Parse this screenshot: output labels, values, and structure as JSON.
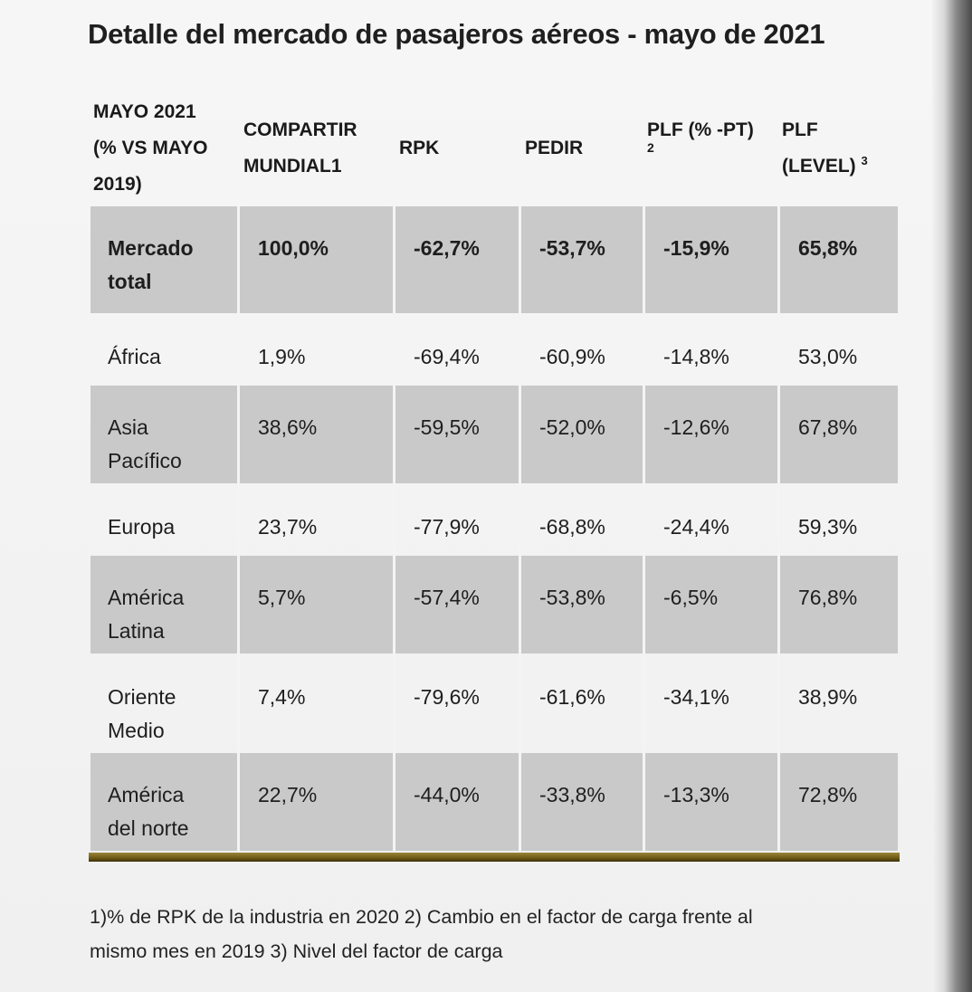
{
  "title": "Detalle del mercado de pasajeros aéreos - mayo de 2021",
  "header": {
    "col1": [
      "MAYO 2021",
      "(% VS MAYO",
      "2019)"
    ],
    "col2": [
      "COMPARTIR",
      "MUNDIAL1"
    ],
    "col3": "RPK",
    "col4": "PEDIR",
    "col5_line1": "PLF (% -PT)",
    "col5_sub": "2",
    "col6_line1": "PLF",
    "col6_line2": "(LEVEL)",
    "col6_sup": "3"
  },
  "rows": [
    {
      "region": [
        "Mercado",
        "total"
      ],
      "share": "100,0%",
      "rpk": "-62,7%",
      "ask": "-53,7%",
      "plf_pt": "-15,9%",
      "plf_level": "65,8%"
    },
    {
      "region": [
        "África"
      ],
      "share": "1,9%",
      "rpk": "-69,4%",
      "ask": "-60,9%",
      "plf_pt": "-14,8%",
      "plf_level": "53,0%"
    },
    {
      "region": [
        "Asia",
        "Pacífico"
      ],
      "share": "38,6%",
      "rpk": "-59,5%",
      "ask": "-52,0%",
      "plf_pt": "-12,6%",
      "plf_level": "67,8%"
    },
    {
      "region": [
        "Europa"
      ],
      "share": "23,7%",
      "rpk": "-77,9%",
      "ask": "-68,8%",
      "plf_pt": "-24,4%",
      "plf_level": "59,3%"
    },
    {
      "region": [
        "América",
        "Latina"
      ],
      "share": "5,7%",
      "rpk": "-57,4%",
      "ask": "-53,8%",
      "plf_pt": "-6,5%",
      "plf_level": "76,8%"
    },
    {
      "region": [
        "Oriente",
        "Medio"
      ],
      "share": "7,4%",
      "rpk": "-79,6%",
      "ask": "-61,6%",
      "plf_pt": "-34,1%",
      "plf_level": "38,9%"
    },
    {
      "region": [
        "América",
        "del norte"
      ],
      "share": "22,7%",
      "rpk": "-44,0%",
      "ask": "-33,8%",
      "plf_pt": "-13,3%",
      "plf_level": "72,8%"
    }
  ],
  "footnote": [
    "1)% de RPK de la industria en 2020 2) Cambio en el factor de carga frente al",
    "mismo mes en 2019 3) Nivel del factor de carga"
  ]
}
